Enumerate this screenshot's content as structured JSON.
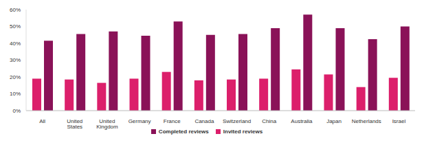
{
  "chart_data": {
    "type": "bar",
    "categories": [
      "All",
      "United States",
      "United Kingdom",
      "Germany",
      "France",
      "Canada",
      "Switzerland",
      "China",
      "Australia",
      "Japan",
      "Netherlands",
      "Israel"
    ],
    "series": [
      {
        "name": "Invited reviews",
        "color": "#dc1f6b",
        "values": [
          19,
          18.5,
          16.5,
          19,
          23,
          18,
          18.5,
          19,
          24.5,
          21.5,
          14,
          19.5
        ]
      },
      {
        "name": "Completed reviews",
        "color": "#8a1258",
        "values": [
          41.5,
          45.5,
          47,
          44.5,
          53,
          45,
          45.5,
          49,
          57,
          49,
          42.5,
          50
        ]
      }
    ],
    "ylim": [
      0,
      60
    ],
    "yticks": [
      {
        "value": 0,
        "label": "0%"
      },
      {
        "value": 10,
        "label": "10%"
      },
      {
        "value": 20,
        "label": "20%"
      },
      {
        "value": 30,
        "label": "30%"
      },
      {
        "value": 40,
        "label": "40%"
      },
      {
        "value": 50,
        "label": "50%"
      },
      {
        "value": 60,
        "label": "60%"
      }
    ],
    "grid": false,
    "legend": "bottom"
  }
}
